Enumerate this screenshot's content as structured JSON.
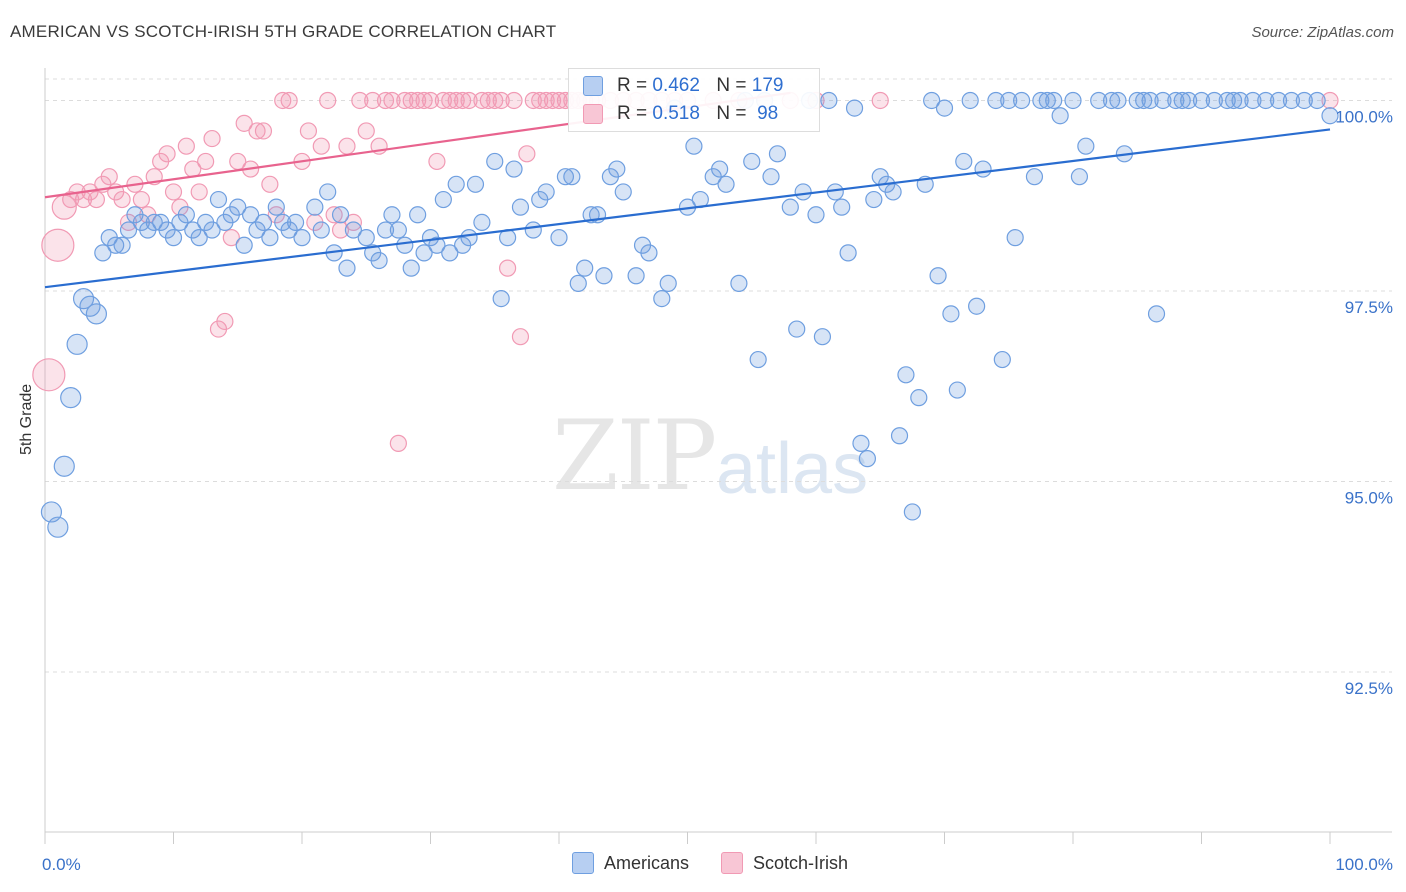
{
  "title": "AMERICAN VS SCOTCH-IRISH 5TH GRADE CORRELATION CHART",
  "source": "Source: ZipAtlas.com",
  "watermark": {
    "zip": "ZIP",
    "atlas": "atlas"
  },
  "chart_data": {
    "type": "scatter",
    "title": "AMERICAN VS SCOTCH-IRISH 5TH GRADE CORRELATION CHART",
    "xlabel": "",
    "ylabel": "5th Grade",
    "xlim": [
      0,
      100
    ],
    "ylim": [
      90.4,
      100.4
    ],
    "x_tick_labels": [
      "0.0%",
      "100.0%"
    ],
    "y_ticks": [
      92.5,
      95.0,
      97.5,
      100.0
    ],
    "y_tick_labels": [
      "92.5%",
      "95.0%",
      "97.5%",
      "100.0%"
    ],
    "grid": true,
    "legend_position": "top-center",
    "colors": {
      "americans": "#6f9fe0",
      "scotch_irish": "#f19ab4",
      "americans_line": "#2a6dd0",
      "scotch_line": "#e8638e"
    },
    "series": [
      {
        "name": "Americans",
        "R": "0.462",
        "N": "179",
        "trend": {
          "x0": 0,
          "y0": 97.55,
          "x1": 100,
          "y1": 99.62
        },
        "points": [
          [
            0.5,
            94.6
          ],
          [
            1,
            94.4
          ],
          [
            1.5,
            95.2
          ],
          [
            2,
            96.1
          ],
          [
            2.5,
            96.8
          ],
          [
            3,
            97.4
          ],
          [
            3.5,
            97.3
          ],
          [
            4,
            97.2
          ],
          [
            4.5,
            98.0
          ],
          [
            5,
            98.2
          ],
          [
            5.5,
            98.1
          ],
          [
            6,
            98.1
          ],
          [
            6.5,
            98.3
          ],
          [
            7,
            98.5
          ],
          [
            7.5,
            98.4
          ],
          [
            8,
            98.3
          ],
          [
            8.5,
            98.4
          ],
          [
            9,
            98.4
          ],
          [
            9.5,
            98.3
          ],
          [
            10,
            98.2
          ],
          [
            10.5,
            98.4
          ],
          [
            11,
            98.5
          ],
          [
            11.5,
            98.3
          ],
          [
            12,
            98.2
          ],
          [
            12.5,
            98.4
          ],
          [
            13,
            98.3
          ],
          [
            13.5,
            98.7
          ],
          [
            14,
            98.4
          ],
          [
            14.5,
            98.5
          ],
          [
            15,
            98.6
          ],
          [
            15.5,
            98.1
          ],
          [
            16,
            98.5
          ],
          [
            16.5,
            98.3
          ],
          [
            17,
            98.4
          ],
          [
            17.5,
            98.2
          ],
          [
            18,
            98.6
          ],
          [
            18.5,
            98.4
          ],
          [
            19,
            98.3
          ],
          [
            19.5,
            98.4
          ],
          [
            20,
            98.2
          ],
          [
            21,
            98.6
          ],
          [
            21.5,
            98.3
          ],
          [
            22,
            98.8
          ],
          [
            22.5,
            98.0
          ],
          [
            23,
            98.5
          ],
          [
            23.5,
            97.8
          ],
          [
            24,
            98.3
          ],
          [
            25,
            98.2
          ],
          [
            25.5,
            98.0
          ],
          [
            26,
            97.9
          ],
          [
            26.5,
            98.3
          ],
          [
            27,
            98.5
          ],
          [
            27.5,
            98.3
          ],
          [
            28,
            98.1
          ],
          [
            28.5,
            97.8
          ],
          [
            29,
            98.5
          ],
          [
            29.5,
            98.0
          ],
          [
            30,
            98.2
          ],
          [
            30.5,
            98.1
          ],
          [
            31,
            98.7
          ],
          [
            31.5,
            98.0
          ],
          [
            32,
            98.9
          ],
          [
            32.5,
            98.1
          ],
          [
            33,
            98.2
          ],
          [
            33.5,
            98.9
          ],
          [
            34,
            98.4
          ],
          [
            35,
            99.2
          ],
          [
            35.5,
            97.4
          ],
          [
            36,
            98.2
          ],
          [
            36.5,
            99.1
          ],
          [
            37,
            98.6
          ],
          [
            38,
            98.3
          ],
          [
            38.5,
            98.7
          ],
          [
            39,
            98.8
          ],
          [
            40,
            98.2
          ],
          [
            40.5,
            99.0
          ],
          [
            41,
            99.0
          ],
          [
            41.5,
            97.6
          ],
          [
            42,
            97.8
          ],
          [
            42.5,
            98.5
          ],
          [
            43,
            98.5
          ],
          [
            43.5,
            97.7
          ],
          [
            44,
            99.0
          ],
          [
            44.5,
            99.1
          ],
          [
            45,
            98.8
          ],
          [
            46,
            97.7
          ],
          [
            46.5,
            98.1
          ],
          [
            47,
            98.0
          ],
          [
            48,
            97.4
          ],
          [
            48.5,
            97.6
          ],
          [
            49,
            99.9
          ],
          [
            50,
            98.6
          ],
          [
            50.5,
            99.4
          ],
          [
            51,
            98.7
          ],
          [
            52,
            99.0
          ],
          [
            52.5,
            99.1
          ],
          [
            53,
            98.9
          ],
          [
            54,
            97.6
          ],
          [
            54.5,
            100.0
          ],
          [
            55,
            99.2
          ],
          [
            55.5,
            96.6
          ],
          [
            56,
            100.0
          ],
          [
            56.5,
            99.0
          ],
          [
            57,
            99.3
          ],
          [
            58,
            98.6
          ],
          [
            58.5,
            97.0
          ],
          [
            59,
            98.8
          ],
          [
            59.5,
            100.0
          ],
          [
            60,
            98.5
          ],
          [
            60.5,
            96.9
          ],
          [
            61,
            100.0
          ],
          [
            61.5,
            98.8
          ],
          [
            62,
            98.6
          ],
          [
            62.5,
            98.0
          ],
          [
            63,
            99.9
          ],
          [
            63.5,
            95.5
          ],
          [
            64,
            95.3
          ],
          [
            64.5,
            98.7
          ],
          [
            65,
            99.0
          ],
          [
            65.5,
            98.9
          ],
          [
            66,
            98.8
          ],
          [
            66.5,
            95.6
          ],
          [
            67,
            96.4
          ],
          [
            67.5,
            94.6
          ],
          [
            68,
            96.1
          ],
          [
            68.5,
            98.9
          ],
          [
            69,
            100.0
          ],
          [
            69.5,
            97.7
          ],
          [
            70,
            99.9
          ],
          [
            70.5,
            97.2
          ],
          [
            71,
            96.2
          ],
          [
            71.5,
            99.2
          ],
          [
            72,
            100.0
          ],
          [
            72.5,
            97.3
          ],
          [
            73,
            99.1
          ],
          [
            74,
            100.0
          ],
          [
            74.5,
            96.6
          ],
          [
            75,
            100.0
          ],
          [
            75.5,
            98.2
          ],
          [
            76,
            100.0
          ],
          [
            77,
            99.0
          ],
          [
            77.5,
            100.0
          ],
          [
            78,
            100.0
          ],
          [
            78.5,
            100.0
          ],
          [
            79,
            99.8
          ],
          [
            80,
            100.0
          ],
          [
            80.5,
            99.0
          ],
          [
            81,
            99.4
          ],
          [
            82,
            100.0
          ],
          [
            83,
            100.0
          ],
          [
            83.5,
            100.0
          ],
          [
            84,
            99.3
          ],
          [
            85,
            100.0
          ],
          [
            85.5,
            100.0
          ],
          [
            86,
            100.0
          ],
          [
            86.5,
            97.2
          ],
          [
            87,
            100.0
          ],
          [
            88,
            100.0
          ],
          [
            88.5,
            100.0
          ],
          [
            89,
            100.0
          ],
          [
            90,
            100.0
          ],
          [
            91,
            100.0
          ],
          [
            92,
            100.0
          ],
          [
            92.5,
            100.0
          ],
          [
            93,
            100.0
          ],
          [
            94,
            100.0
          ],
          [
            95,
            100.0
          ],
          [
            96,
            100.0
          ],
          [
            97,
            100.0
          ],
          [
            98,
            100.0
          ],
          [
            99,
            100.0
          ],
          [
            100,
            99.8
          ]
        ]
      },
      {
        "name": "Scotch-Irish",
        "R": "0.518",
        "N": "98",
        "trend": {
          "x0": 0,
          "y0": 98.73,
          "x1": 58,
          "y1": 100.1
        },
        "points": [
          [
            0.3,
            96.4
          ],
          [
            1,
            98.1
          ],
          [
            1.5,
            98.6
          ],
          [
            2,
            98.7
          ],
          [
            2.5,
            98.8
          ],
          [
            3,
            98.7
          ],
          [
            3.5,
            98.8
          ],
          [
            4,
            98.7
          ],
          [
            4.5,
            98.9
          ],
          [
            5,
            99.0
          ],
          [
            5.5,
            98.8
          ],
          [
            6,
            98.7
          ],
          [
            6.5,
            98.4
          ],
          [
            7,
            98.9
          ],
          [
            7.5,
            98.7
          ],
          [
            8,
            98.5
          ],
          [
            8.5,
            99.0
          ],
          [
            9,
            99.2
          ],
          [
            9.5,
            99.3
          ],
          [
            10,
            98.8
          ],
          [
            10.5,
            98.6
          ],
          [
            11,
            99.4
          ],
          [
            11.5,
            99.1
          ],
          [
            12,
            98.8
          ],
          [
            12.5,
            99.2
          ],
          [
            13,
            99.5
          ],
          [
            13.5,
            97.0
          ],
          [
            14,
            97.1
          ],
          [
            14.5,
            98.2
          ],
          [
            15,
            99.2
          ],
          [
            15.5,
            99.7
          ],
          [
            16,
            99.1
          ],
          [
            16.5,
            99.6
          ],
          [
            17,
            99.6
          ],
          [
            17.5,
            98.9
          ],
          [
            18,
            98.5
          ],
          [
            18.5,
            100.0
          ],
          [
            19,
            100.0
          ],
          [
            20,
            99.2
          ],
          [
            20.5,
            99.6
          ],
          [
            21,
            98.4
          ],
          [
            21.5,
            99.4
          ],
          [
            22,
            100.0
          ],
          [
            22.5,
            98.5
          ],
          [
            23,
            98.3
          ],
          [
            23.5,
            99.4
          ],
          [
            24,
            98.4
          ],
          [
            24.5,
            100.0
          ],
          [
            25,
            99.6
          ],
          [
            25.5,
            100.0
          ],
          [
            26,
            99.4
          ],
          [
            26.5,
            100.0
          ],
          [
            27,
            100.0
          ],
          [
            27.5,
            95.5
          ],
          [
            28,
            100.0
          ],
          [
            28.5,
            100.0
          ],
          [
            29,
            100.0
          ],
          [
            29.5,
            100.0
          ],
          [
            30,
            100.0
          ],
          [
            30.5,
            99.2
          ],
          [
            31,
            100.0
          ],
          [
            31.5,
            100.0
          ],
          [
            32,
            100.0
          ],
          [
            32.5,
            100.0
          ],
          [
            33,
            100.0
          ],
          [
            34,
            100.0
          ],
          [
            34.5,
            100.0
          ],
          [
            35,
            100.0
          ],
          [
            35.5,
            100.0
          ],
          [
            36,
            97.8
          ],
          [
            36.5,
            100.0
          ],
          [
            37,
            96.9
          ],
          [
            37.5,
            99.3
          ],
          [
            38,
            100.0
          ],
          [
            38.5,
            100.0
          ],
          [
            39,
            100.0
          ],
          [
            39.5,
            100.0
          ],
          [
            40,
            100.0
          ],
          [
            40.5,
            100.0
          ],
          [
            41,
            100.0
          ],
          [
            41.5,
            100.0
          ],
          [
            42,
            100.0
          ],
          [
            42.5,
            100.0
          ],
          [
            43,
            100.0
          ],
          [
            44,
            100.0
          ],
          [
            45,
            100.0
          ],
          [
            46,
            100.0
          ],
          [
            47,
            100.0
          ],
          [
            48,
            100.0
          ],
          [
            49,
            100.0
          ],
          [
            50,
            100.0
          ],
          [
            52,
            100.0
          ],
          [
            54,
            100.0
          ],
          [
            56,
            100.0
          ],
          [
            58,
            100.0
          ],
          [
            60,
            100.0
          ],
          [
            65,
            100.0
          ],
          [
            100,
            100.0
          ]
        ]
      }
    ]
  },
  "legend": {
    "r_label": "R =",
    "n_label": "N =",
    "americans_r": "0.462",
    "americans_n": "179",
    "scotch_r": "0.518",
    "scotch_n": "98"
  },
  "bottom_legend": {
    "americans": "Americans",
    "scotch_irish": "Scotch-Irish"
  }
}
